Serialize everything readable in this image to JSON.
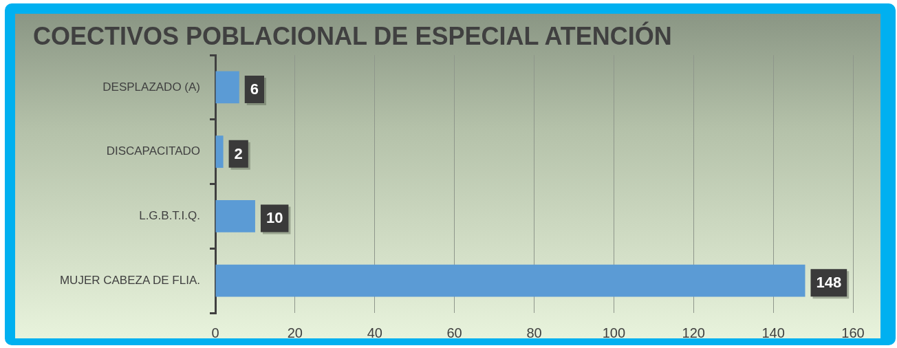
{
  "chart_data": {
    "type": "bar",
    "orientation": "horizontal",
    "title": "COECTIVOS POBLACIONAL DE ESPECIAL ATENCIÓN",
    "categories": [
      "DESPLAZADO (A)",
      "DISCAPACITADO",
      "L.G.B.T.I.Q.",
      "MUJER CABEZA DE FLIA."
    ],
    "values": [
      6,
      2,
      10,
      148
    ],
    "color": "#5b9bd5",
    "xlim": [
      0,
      160
    ],
    "xticks": [
      0,
      20,
      40,
      60,
      80,
      100,
      120,
      140,
      160
    ],
    "grid": "x",
    "data_labels": true
  }
}
